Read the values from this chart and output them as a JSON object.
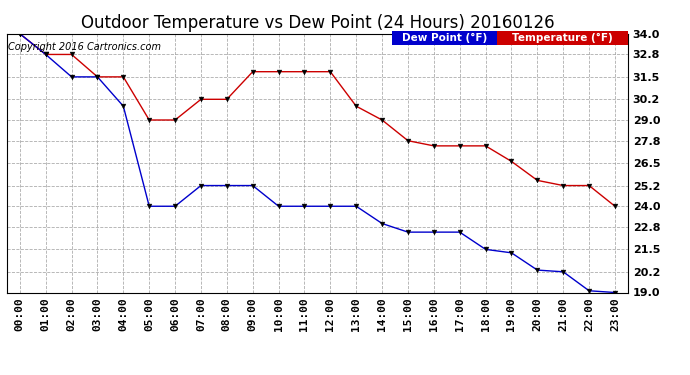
{
  "title": "Outdoor Temperature vs Dew Point (24 Hours) 20160126",
  "copyright": "Copyright 2016 Cartronics.com",
  "legend_dew": "Dew Point (°F)",
  "legend_temp": "Temperature (°F)",
  "x_labels": [
    "00:00",
    "01:00",
    "02:00",
    "03:00",
    "04:00",
    "05:00",
    "06:00",
    "07:00",
    "08:00",
    "09:00",
    "10:00",
    "11:00",
    "12:00",
    "13:00",
    "14:00",
    "15:00",
    "16:00",
    "17:00",
    "18:00",
    "19:00",
    "20:00",
    "21:00",
    "22:00",
    "23:00"
  ],
  "temperature": [
    34.0,
    32.8,
    32.8,
    31.5,
    31.5,
    29.0,
    29.0,
    30.2,
    30.2,
    31.8,
    31.8,
    31.8,
    31.8,
    29.8,
    29.0,
    27.8,
    27.5,
    27.5,
    27.5,
    26.6,
    25.5,
    25.2,
    25.2,
    24.0
  ],
  "dew_point": [
    34.0,
    32.8,
    31.5,
    31.5,
    29.8,
    24.0,
    24.0,
    25.2,
    25.2,
    25.2,
    24.0,
    24.0,
    24.0,
    24.0,
    23.0,
    22.5,
    22.5,
    22.5,
    21.5,
    21.3,
    20.3,
    20.2,
    19.1,
    19.0
  ],
  "ylim_min": 19.0,
  "ylim_max": 34.0,
  "y_ticks": [
    19.0,
    20.2,
    21.5,
    22.8,
    24.0,
    25.2,
    26.5,
    27.8,
    29.0,
    30.2,
    31.5,
    32.8,
    34.0
  ],
  "temp_color": "#cc0000",
  "dew_color": "#0000cc",
  "background_color": "#ffffff",
  "grid_color": "#999999",
  "title_fontsize": 12,
  "tick_fontsize": 8,
  "copyright_fontsize": 7
}
